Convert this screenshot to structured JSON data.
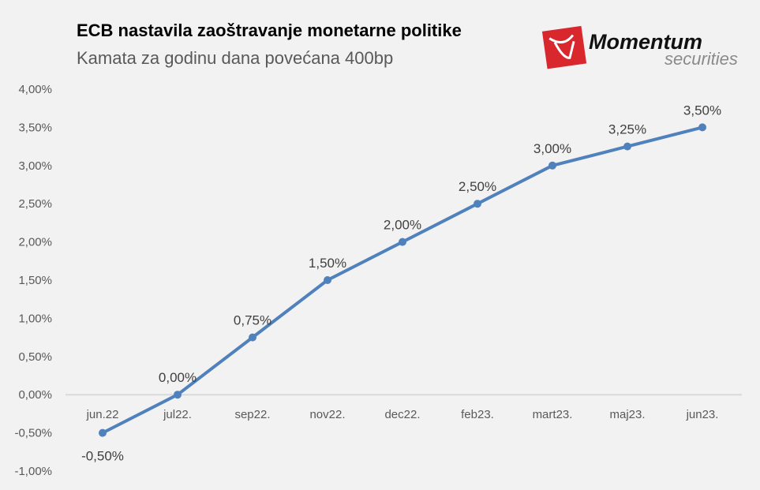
{
  "chart_data": {
    "type": "line",
    "title": "ECB nastavila zaoštravanje monetarne politike",
    "subtitle": "Kamata za godinu dana povećana 400bp",
    "categories": [
      "jun.22",
      "jul22.",
      "sep22.",
      "nov22.",
      "dec22.",
      "feb23.",
      "mart23.",
      "maj23.",
      "jun23."
    ],
    "series": [
      {
        "values": [
          -0.5,
          0,
          0.75,
          1.5,
          2.0,
          2.5,
          3.0,
          3.25,
          3.5
        ],
        "color": "#4f81bd"
      }
    ],
    "data_labels": [
      "-0,50%",
      "0,00%",
      "0,75%",
      "1,50%",
      "2,00%",
      "2,50%",
      "3,00%",
      "3,25%",
      "3,50%"
    ],
    "negative_label_color": "#ff0000",
    "y_ticks": [
      "4,00%",
      "3,50%",
      "3,00%",
      "2,50%",
      "2,00%",
      "1,50%",
      "1,00%",
      "0,50%",
      "0,00%",
      "-0,50%",
      "-1,00%"
    ],
    "ylim": [
      -1.0,
      4.0
    ],
    "grid": false,
    "legend": "none"
  },
  "logo": {
    "brand": "Momentum",
    "tagline": "securities",
    "color": "#d9272e"
  }
}
